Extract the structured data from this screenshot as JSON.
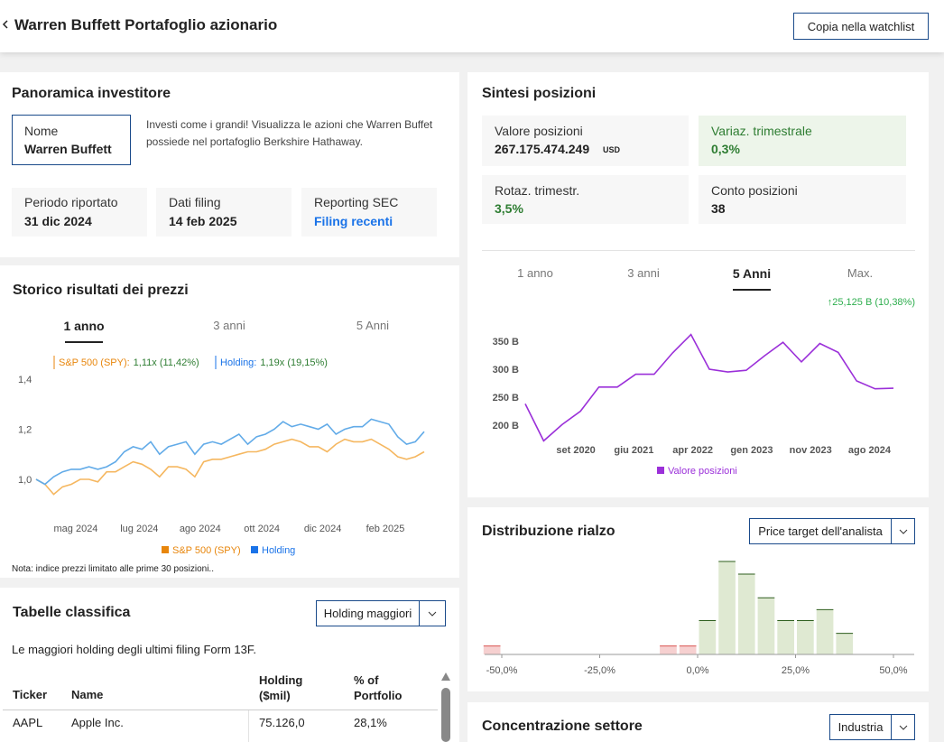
{
  "header": {
    "title": "Warren Buffett Portafoglio azionario",
    "button": "Copia nella watchlist"
  },
  "overview": {
    "title": "Panoramica investitore",
    "name_label": "Nome",
    "name": "Warren Buffett",
    "description": "Investi come i grandi! Visualizza le azioni che Warren Buffet possiede nel portafoglio Berkshire Hathaway.",
    "stats": [
      {
        "label": "Periodo riportato",
        "value": "31 dic 2024"
      },
      {
        "label": "Dati filing",
        "value": "14 feb 2025"
      },
      {
        "label": "Reporting SEC",
        "value": "Filing recenti"
      }
    ]
  },
  "price_history": {
    "title": "Storico risultati dei prezzi",
    "tabs": [
      "1 anno",
      "3 anni",
      "5 Anni"
    ],
    "active_tab": 0,
    "note": "Nota: indice prezzi limitato alle prime 30 posizioni.."
  },
  "rankings": {
    "title": "Tabelle classifica",
    "dropdown": "Holding maggiori",
    "subtitle": "Le maggiori holding degli ultimi filing Form 13F.",
    "table": {
      "headers": [
        "Ticker",
        "Name",
        "Holding ($mil)",
        "% of Portfolio"
      ],
      "rows": [
        [
          "AAPL",
          "Apple Inc.",
          "75.126,0",
          "28,1%"
        ]
      ]
    }
  },
  "positions": {
    "title": "Sintesi posizioni",
    "stats": [
      {
        "label": "Valore posizioni",
        "value": "267.175.474.249",
        "unit": "USD"
      },
      {
        "label": "Variaz. trimestrale",
        "value": "0,3%"
      },
      {
        "label": "Rotaz. trimestr.",
        "value": "3,5%"
      },
      {
        "label": "Conto posizioni",
        "value": "38"
      }
    ],
    "tabs": [
      "1 anno",
      "3 anni",
      "5 Anni",
      "Max."
    ],
    "active_tab": 2
  },
  "upside": {
    "title": "Distribuzione rialzo",
    "dropdown": "Price target dell'analista"
  },
  "sector": {
    "title": "Concentrazione settore",
    "dropdown": "Industria"
  },
  "chart_data": [
    {
      "type": "line",
      "annotations": [
        {
          "label": "S&P 500 (SPY):",
          "value": "1,11x (11,42%)"
        },
        {
          "label": "Holding:",
          "value": "1,19x (19,15%)"
        }
      ],
      "x": [
        0,
        1,
        2,
        3,
        4,
        5,
        6,
        7,
        8,
        9,
        10,
        11,
        12,
        13,
        14,
        15,
        16,
        17,
        18,
        19,
        20,
        21,
        22,
        23,
        24,
        25,
        26,
        27,
        28,
        29,
        30,
        31,
        32,
        33,
        34,
        35,
        36,
        37,
        38,
        39,
        40,
        41,
        42,
        43,
        44
      ],
      "xlim": [
        0,
        44
      ],
      "xticks": [
        {
          "value": 4.5,
          "label": "mag 2024"
        },
        {
          "value": 11.7,
          "label": "lug 2024"
        },
        {
          "value": 18.6,
          "label": "ago 2024"
        },
        {
          "value": 25.6,
          "label": "ott 2024"
        },
        {
          "value": 32.5,
          "label": "dic 2024"
        },
        {
          "value": 39.6,
          "label": "feb 2025"
        }
      ],
      "ylim": [
        0.92,
        1.42
      ],
      "yticks": [
        {
          "value": 1.0,
          "label": "1,0"
        },
        {
          "value": 1.2,
          "label": "1,2"
        },
        {
          "value": 1.4,
          "label": "1,4"
        }
      ],
      "grid": false,
      "series": [
        {
          "name": "S&P 500 (SPY)",
          "color": "#f5b760",
          "legend_color": "#e8860c",
          "values": [
            1.0,
            0.98,
            0.94,
            0.97,
            0.98,
            1.0,
            1.0,
            0.99,
            1.03,
            1.03,
            1.05,
            1.07,
            1.06,
            1.04,
            1.01,
            1.05,
            1.05,
            1.04,
            1.01,
            1.07,
            1.08,
            1.08,
            1.09,
            1.1,
            1.11,
            1.11,
            1.12,
            1.14,
            1.15,
            1.16,
            1.15,
            1.13,
            1.13,
            1.11,
            1.14,
            1.16,
            1.15,
            1.15,
            1.16,
            1.14,
            1.12,
            1.09,
            1.08,
            1.09,
            1.11
          ]
        },
        {
          "name": "Holding",
          "color": "#62abe8",
          "legend_color": "#1a73e8",
          "values": [
            1.0,
            0.98,
            1.01,
            1.03,
            1.04,
            1.04,
            1.05,
            1.04,
            1.05,
            1.07,
            1.11,
            1.13,
            1.12,
            1.15,
            1.1,
            1.13,
            1.14,
            1.15,
            1.1,
            1.14,
            1.15,
            1.14,
            1.16,
            1.18,
            1.14,
            1.17,
            1.18,
            1.2,
            1.23,
            1.21,
            1.22,
            1.21,
            1.2,
            1.22,
            1.18,
            1.2,
            1.21,
            1.21,
            1.24,
            1.23,
            1.22,
            1.17,
            1.14,
            1.15,
            1.19
          ]
        }
      ]
    },
    {
      "type": "line",
      "annotation": "↑25,125 B (10,38%)",
      "x": [
        0,
        1,
        2,
        3,
        4,
        5,
        6,
        7,
        8,
        9,
        10,
        11,
        12,
        13,
        14,
        15,
        16,
        17,
        18,
        19,
        20
      ],
      "xlim": [
        0,
        20
      ],
      "xticks": [
        {
          "value": 2.75,
          "label": "set 2020"
        },
        {
          "value": 5.9,
          "label": "giu 2021"
        },
        {
          "value": 9.1,
          "label": "apr 2022"
        },
        {
          "value": 12.3,
          "label": "gen 2023"
        },
        {
          "value": 15.5,
          "label": "nov 2023"
        },
        {
          "value": 18.7,
          "label": "ago 2024"
        }
      ],
      "ylim": [
        170,
        370
      ],
      "yticks": [
        {
          "value": 200,
          "label": "200 B"
        },
        {
          "value": 250,
          "label": "250 B"
        },
        {
          "value": 300,
          "label": "300 B"
        },
        {
          "value": 350,
          "label": "350 B"
        }
      ],
      "grid": false,
      "series": [
        {
          "name": "Valore posizioni",
          "color": "#9b30d9",
          "values": [
            238,
            172,
            201,
            225,
            268,
            268,
            291,
            291,
            329,
            362,
            300,
            295,
            298,
            324,
            348,
            313,
            346,
            330,
            279,
            265,
            266
          ]
        }
      ]
    },
    {
      "type": "histogram",
      "bins": [
        -55,
        -50,
        -45,
        -40,
        -35,
        -30,
        -25,
        -20,
        -15,
        -10,
        -5,
        0,
        5,
        10,
        15,
        20,
        25,
        30,
        35,
        40
      ],
      "counts": [
        1,
        0,
        0,
        0,
        0,
        0,
        0,
        0,
        0,
        1,
        1,
        4,
        11,
        9.5,
        6.7,
        4,
        4,
        5.3,
        2.5
      ],
      "xlim": [
        -55,
        55
      ],
      "xticks": [
        {
          "value": -50,
          "label": "-50,0%"
        },
        {
          "value": -25,
          "label": "-25,0%"
        },
        {
          "value": 0,
          "label": "0,0%"
        },
        {
          "value": 25,
          "label": "25,0%"
        },
        {
          "value": 50,
          "label": "50,0%"
        }
      ],
      "ylim": [
        0,
        11
      ],
      "colors": {
        "negative": "#f6d0d0",
        "negative_edge": "#d9534f",
        "positive": "#dfe9d2",
        "positive_edge": "#2e5e1e"
      }
    }
  ]
}
